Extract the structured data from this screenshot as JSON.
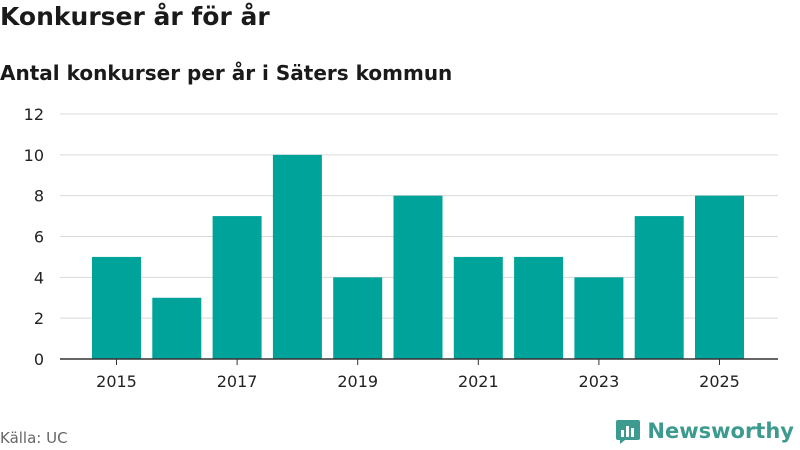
{
  "title": "Konkurser år för år",
  "subtitle": "Antal konkurser per år i Säters kommun",
  "source": "Källa: UC",
  "brand": "Newsworthy",
  "colors": {
    "bar": "#00a39a",
    "grid": "#d9d9d9",
    "axis": "#333333",
    "brand": "#3d9a8f"
  },
  "chart_data": {
    "type": "bar",
    "categories": [
      "2015",
      "2016",
      "2017",
      "2018",
      "2019",
      "2020",
      "2021",
      "2022",
      "2023",
      "2024",
      "2025"
    ],
    "values": [
      5,
      3,
      7,
      10,
      4,
      8,
      5,
      5,
      4,
      7,
      8
    ],
    "x_tick_labels": [
      "2015",
      "2017",
      "2019",
      "2021",
      "2023",
      "2025"
    ],
    "y_ticks": [
      0,
      2,
      4,
      6,
      8,
      10,
      12
    ],
    "ylim": [
      0,
      12
    ],
    "grid": true,
    "legend": "none"
  }
}
